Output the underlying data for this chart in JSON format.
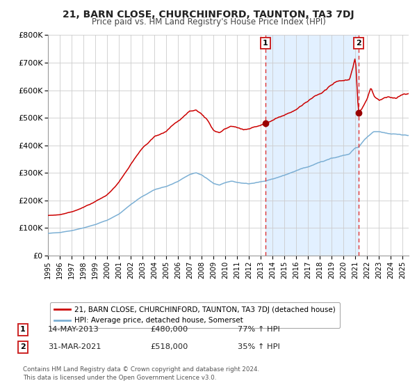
{
  "title": "21, BARN CLOSE, CHURCHINFORD, TAUNTON, TA3 7DJ",
  "subtitle": "Price paid vs. HM Land Registry's House Price Index (HPI)",
  "ylim": [
    0,
    800000
  ],
  "yticks": [
    0,
    100000,
    200000,
    300000,
    400000,
    500000,
    600000,
    700000,
    800000
  ],
  "ytick_labels": [
    "£0",
    "£100K",
    "£200K",
    "£300K",
    "£400K",
    "£500K",
    "£600K",
    "£700K",
    "£800K"
  ],
  "xlim_start": 1995.0,
  "xlim_end": 2025.5,
  "xticks": [
    1995,
    1996,
    1997,
    1998,
    1999,
    2000,
    2001,
    2002,
    2003,
    2004,
    2005,
    2006,
    2007,
    2008,
    2009,
    2010,
    2011,
    2012,
    2013,
    2014,
    2015,
    2016,
    2017,
    2018,
    2019,
    2020,
    2021,
    2022,
    2023,
    2024,
    2025
  ],
  "red_line_color": "#cc0000",
  "blue_line_color": "#7bafd4",
  "marker_color": "#990000",
  "dashed_line_color": "#dd3333",
  "highlight_bg_color": "#ddeeff",
  "grid_color": "#cccccc",
  "background_color": "#ffffff",
  "sale1_x": 2013.37,
  "sale1_y": 480000,
  "sale2_x": 2021.25,
  "sale2_y": 518000,
  "legend_line1": "21, BARN CLOSE, CHURCHINFORD, TAUNTON, TA3 7DJ (detached house)",
  "legend_line2": "HPI: Average price, detached house, Somerset",
  "table_row1_label": "1",
  "table_row1_date": "14-MAY-2013",
  "table_row1_price": "£480,000",
  "table_row1_hpi": "77% ↑ HPI",
  "table_row2_label": "2",
  "table_row2_date": "31-MAR-2021",
  "table_row2_price": "£518,000",
  "table_row2_hpi": "35% ↑ HPI",
  "footer": "Contains HM Land Registry data © Crown copyright and database right 2024.\nThis data is licensed under the Open Government Licence v3.0."
}
